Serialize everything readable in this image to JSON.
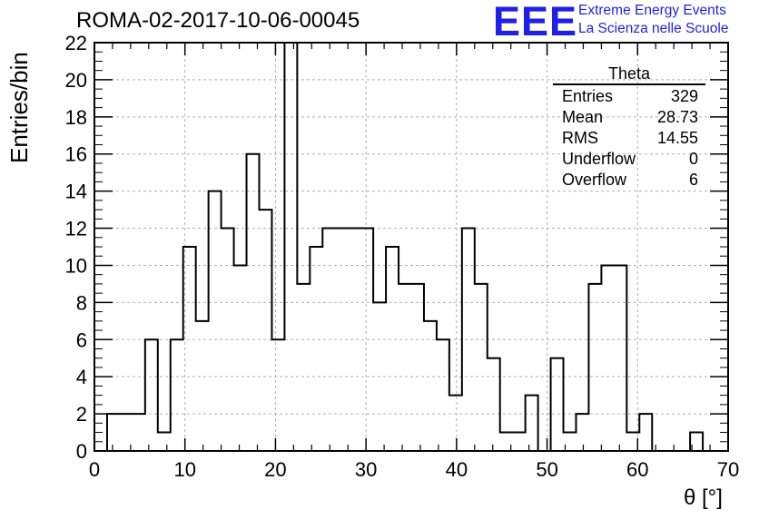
{
  "header": {
    "title": "ROMA-02-2017-10-06-00045",
    "logo_mark": "EEE",
    "logo_line1": "Extreme Energy Events",
    "logo_line2": "La Scienza nelle Scuole"
  },
  "stats_box": {
    "title": "Theta",
    "rows": [
      {
        "label": "Entries",
        "value": "329"
      },
      {
        "label": "Mean",
        "value": "28.73"
      },
      {
        "label": "RMS",
        "value": "14.55"
      },
      {
        "label": "Underflow",
        "value": "0"
      },
      {
        "label": "Overflow",
        "value": "6"
      }
    ]
  },
  "colors": {
    "logo": "#1f1fe6",
    "line": "#000000",
    "grid": "#b0b0b0"
  },
  "chart_data": {
    "type": "histogram",
    "title": "ROMA-02-2017-10-06-00045",
    "xlabel": "θ [°]",
    "ylabel": "Entries/bin",
    "xlim": [
      0,
      70
    ],
    "ylim": [
      0,
      22
    ],
    "grid": true,
    "bin_width": 1.4,
    "bin_edges_start": 0,
    "x_ticks": [
      0,
      10,
      20,
      30,
      40,
      50,
      60,
      70
    ],
    "y_ticks": [
      0,
      2,
      4,
      6,
      8,
      10,
      12,
      14,
      16,
      18,
      20,
      22
    ],
    "values": [
      0,
      2,
      2,
      2,
      6,
      1,
      6,
      11,
      7,
      14,
      12,
      10,
      16,
      13,
      6,
      22,
      9,
      11,
      12,
      12,
      12,
      12,
      8,
      11,
      9,
      9,
      7,
      6,
      3,
      12,
      9,
      5,
      1,
      1,
      3,
      0,
      5,
      1,
      2,
      9,
      10,
      10,
      1,
      2,
      0,
      0,
      0,
      1,
      0,
      0
    ]
  }
}
